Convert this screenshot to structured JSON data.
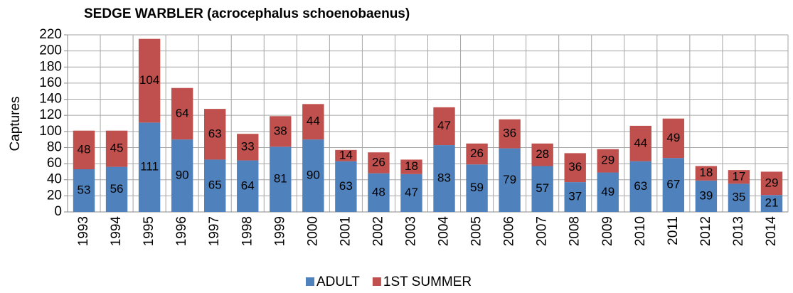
{
  "chart_data": {
    "type": "stacked_bar",
    "title": "SEDGE WARBLER (acrocephalus schoenobaenus)",
    "y_label": "Captures",
    "categories": [
      "1993",
      "1994",
      "1995",
      "1996",
      "1997",
      "1998",
      "1999",
      "2000",
      "2001",
      "2002",
      "2003",
      "2004",
      "2005",
      "2006",
      "2007",
      "2008",
      "2009",
      "2010",
      "2011",
      "2012",
      "2013",
      "2014"
    ],
    "series": [
      {
        "name": "ADULT",
        "color": "#4f81bd",
        "values": [
          53,
          56,
          111,
          90,
          65,
          64,
          81,
          90,
          63,
          48,
          47,
          83,
          59,
          79,
          57,
          37,
          49,
          63,
          67,
          39,
          35,
          21
        ]
      },
      {
        "name": "1ST SUMMER",
        "color": "#c0504d",
        "values": [
          48,
          45,
          104,
          64,
          63,
          33,
          38,
          44,
          14,
          26,
          18,
          47,
          26,
          36,
          28,
          36,
          29,
          44,
          49,
          18,
          17,
          29
        ]
      }
    ],
    "ylim": [
      0,
      220
    ],
    "yticks": [
      0,
      20,
      40,
      60,
      80,
      100,
      120,
      140,
      160,
      180,
      200,
      220
    ],
    "grid": true,
    "legend": "bottom"
  }
}
